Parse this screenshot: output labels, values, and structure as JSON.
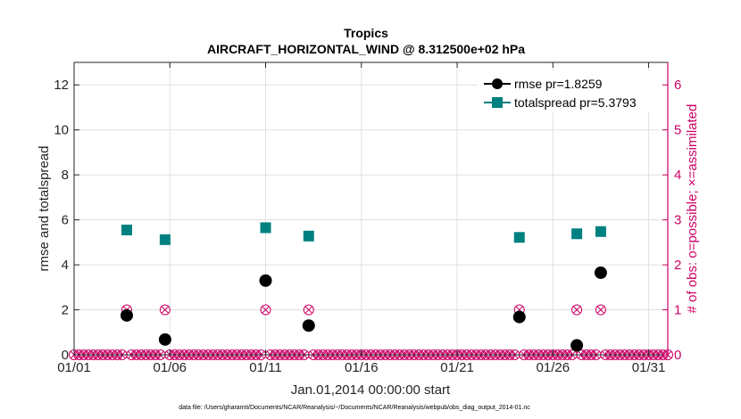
{
  "chart_data": {
    "type": "scatter",
    "title": "Tropics",
    "subtitle": "AIRCRAFT_HORIZONTAL_WIND @ 8.312500e+02 hPa",
    "xlabel": "Jan.01,2014 00:00:00 start",
    "ylabel": "rmse and totalspread",
    "y2label": "# of obs: o=possible; ×=assimilated",
    "footer": "data file: /Users/gharamti/Documents/NCAR/Reanalysis/~/Documents/NCAR/Reanalysis/webpub/obs_diag_output_2014-01.nc",
    "xlim": [
      1,
      32
    ],
    "ylim": [
      0,
      13
    ],
    "y2lim": [
      0,
      6.5
    ],
    "xticks": [
      1,
      6,
      11,
      16,
      21,
      26,
      31
    ],
    "xtick_labels": [
      "01/01",
      "01/06",
      "01/11",
      "01/16",
      "01/21",
      "01/26",
      "01/31"
    ],
    "yticks": [
      0,
      2,
      4,
      6,
      8,
      10,
      12
    ],
    "ytick_labels": [
      "0",
      "2",
      "4",
      "6",
      "8",
      "10",
      "12"
    ],
    "y2ticks": [
      0,
      1,
      2,
      3,
      4,
      5,
      6
    ],
    "y2tick_labels": [
      "0",
      "1",
      "2",
      "3",
      "4",
      "5",
      "6"
    ],
    "grid": true,
    "legend_position": "top-right",
    "colors": {
      "rmse": "#000000",
      "totalspread": "#008080",
      "obs": "#cc0066",
      "axis": "#262626",
      "grid": "#e0e0e0"
    },
    "series": [
      {
        "name": "rmse pr=1.8259",
        "marker": "circle",
        "x": [
          3.75,
          5.75,
          11.0,
          13.25,
          24.25,
          27.25,
          28.5
        ],
        "values": [
          1.75,
          0.68,
          3.3,
          1.3,
          1.68,
          0.42,
          3.65
        ]
      },
      {
        "name": "totalspread pr=5.3793",
        "marker": "square",
        "x": [
          3.75,
          5.75,
          11.0,
          13.25,
          24.25,
          27.25,
          28.5
        ],
        "values": [
          5.55,
          5.12,
          5.65,
          5.28,
          5.22,
          5.38,
          5.48
        ]
      }
    ],
    "obs_counts": {
      "start": 1.0,
      "step": 0.25,
      "count": 125,
      "nonzero": [
        {
          "x": 3.75,
          "possible": 1,
          "assimilated": 1
        },
        {
          "x": 5.75,
          "possible": 1,
          "assimilated": 1
        },
        {
          "x": 11.0,
          "possible": 1,
          "assimilated": 1
        },
        {
          "x": 13.25,
          "possible": 1,
          "assimilated": 1
        },
        {
          "x": 24.25,
          "possible": 1,
          "assimilated": 1
        },
        {
          "x": 27.25,
          "possible": 1,
          "assimilated": 1
        },
        {
          "x": 28.5,
          "possible": 1,
          "assimilated": 1
        }
      ]
    }
  }
}
